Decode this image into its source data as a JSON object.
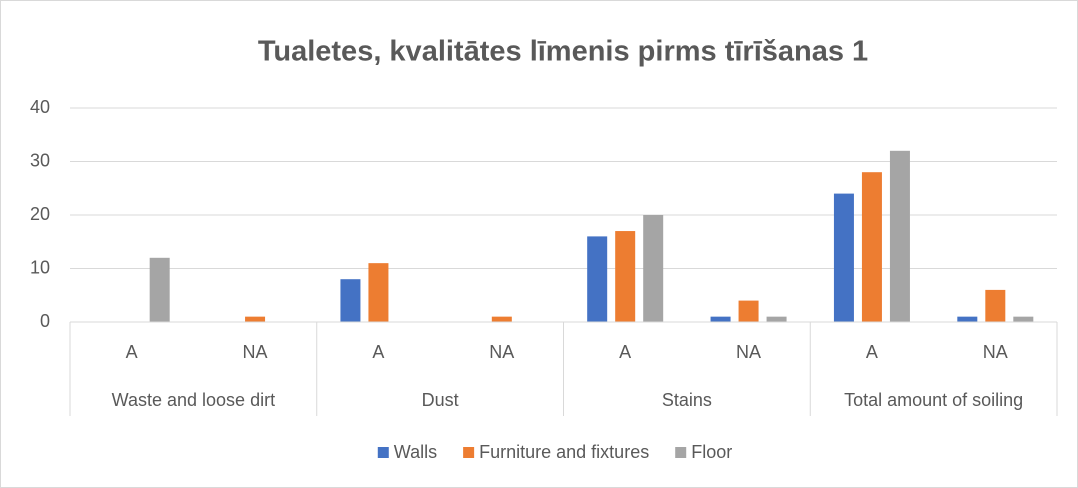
{
  "chart_data": {
    "type": "bar",
    "title": "Tualetes, kvalitātes līmenis pirms tīrīšanas 1",
    "categories": [
      "A",
      "NA",
      "A",
      "NA",
      "A",
      "NA",
      "A",
      "NA"
    ],
    "groups": [
      "Waste and loose dirt",
      "Dust",
      "Stains",
      "Total amount of soiling"
    ],
    "series": [
      {
        "name": "Walls",
        "color": "#4472c4",
        "values": [
          0,
          0,
          8,
          0,
          16,
          1,
          24,
          1
        ]
      },
      {
        "name": "Furniture and fixtures",
        "color": "#ed7d31",
        "values": [
          0,
          1,
          11,
          1,
          17,
          4,
          28,
          6
        ]
      },
      {
        "name": "Floor",
        "color": "#a5a5a5",
        "values": [
          12,
          0,
          0,
          0,
          20,
          1,
          32,
          1
        ]
      }
    ],
    "ylim": [
      0,
      40
    ],
    "yticks": [
      0,
      10,
      20,
      30,
      40
    ],
    "grid": true,
    "legend": "bottom"
  }
}
